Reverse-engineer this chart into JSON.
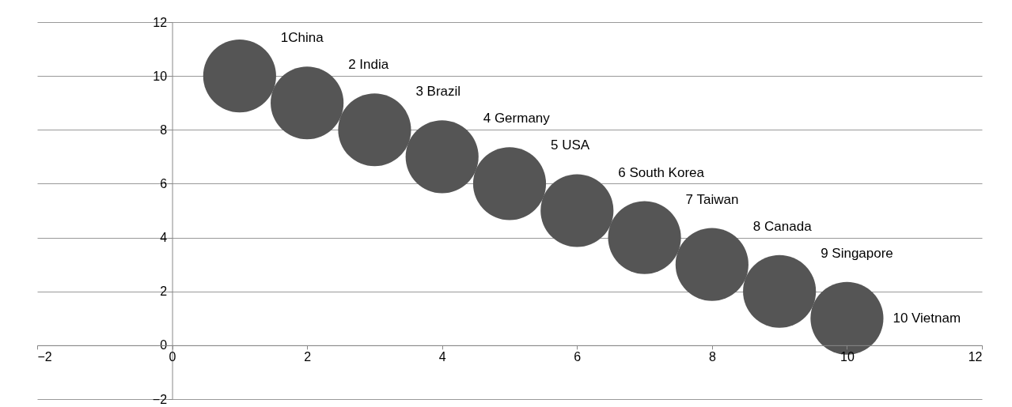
{
  "chart_data": {
    "type": "bubble",
    "series": [
      {
        "name": "1China",
        "color": "#555555",
        "x": [
          1
        ],
        "values": [
          10
        ],
        "sizes": [
          1
        ]
      },
      {
        "name": "2 India",
        "color": "#555555",
        "x": [
          2
        ],
        "values": [
          9
        ],
        "sizes": [
          1
        ]
      },
      {
        "name": "3 Brazil",
        "color": "#555555",
        "x": [
          3
        ],
        "values": [
          8
        ],
        "sizes": [
          1
        ]
      },
      {
        "name": "4 Germany",
        "color": "#555555",
        "x": [
          4
        ],
        "values": [
          7
        ],
        "sizes": [
          1
        ]
      },
      {
        "name": "5 USA",
        "color": "#555555",
        "x": [
          5
        ],
        "values": [
          6
        ],
        "sizes": [
          1
        ]
      },
      {
        "name": "6 South Korea",
        "color": "#555555",
        "x": [
          6
        ],
        "values": [
          5
        ],
        "sizes": [
          1
        ]
      },
      {
        "name": "7 Taiwan",
        "color": "#555555",
        "x": [
          7
        ],
        "values": [
          4
        ],
        "sizes": [
          1
        ]
      },
      {
        "name": "8 Canada",
        "color": "#555555",
        "x": [
          8
        ],
        "values": [
          3
        ],
        "sizes": [
          1
        ]
      },
      {
        "name": "9 Singapore",
        "color": "#555555",
        "x": [
          9
        ],
        "values": [
          2
        ],
        "sizes": [
          1
        ]
      },
      {
        "name": "10 Vietnam",
        "color": "#555555",
        "x": [
          10
        ],
        "values": [
          1
        ],
        "sizes": [
          1
        ]
      }
    ],
    "xlim": [
      -2,
      12
    ],
    "xticks": [
      -2,
      0,
      2,
      4,
      6,
      8,
      10,
      12
    ],
    "ylim": [
      -2,
      12
    ],
    "yticks": [
      -2,
      0,
      2,
      4,
      6,
      8,
      10,
      12
    ],
    "grid": "y",
    "legend": false
  }
}
